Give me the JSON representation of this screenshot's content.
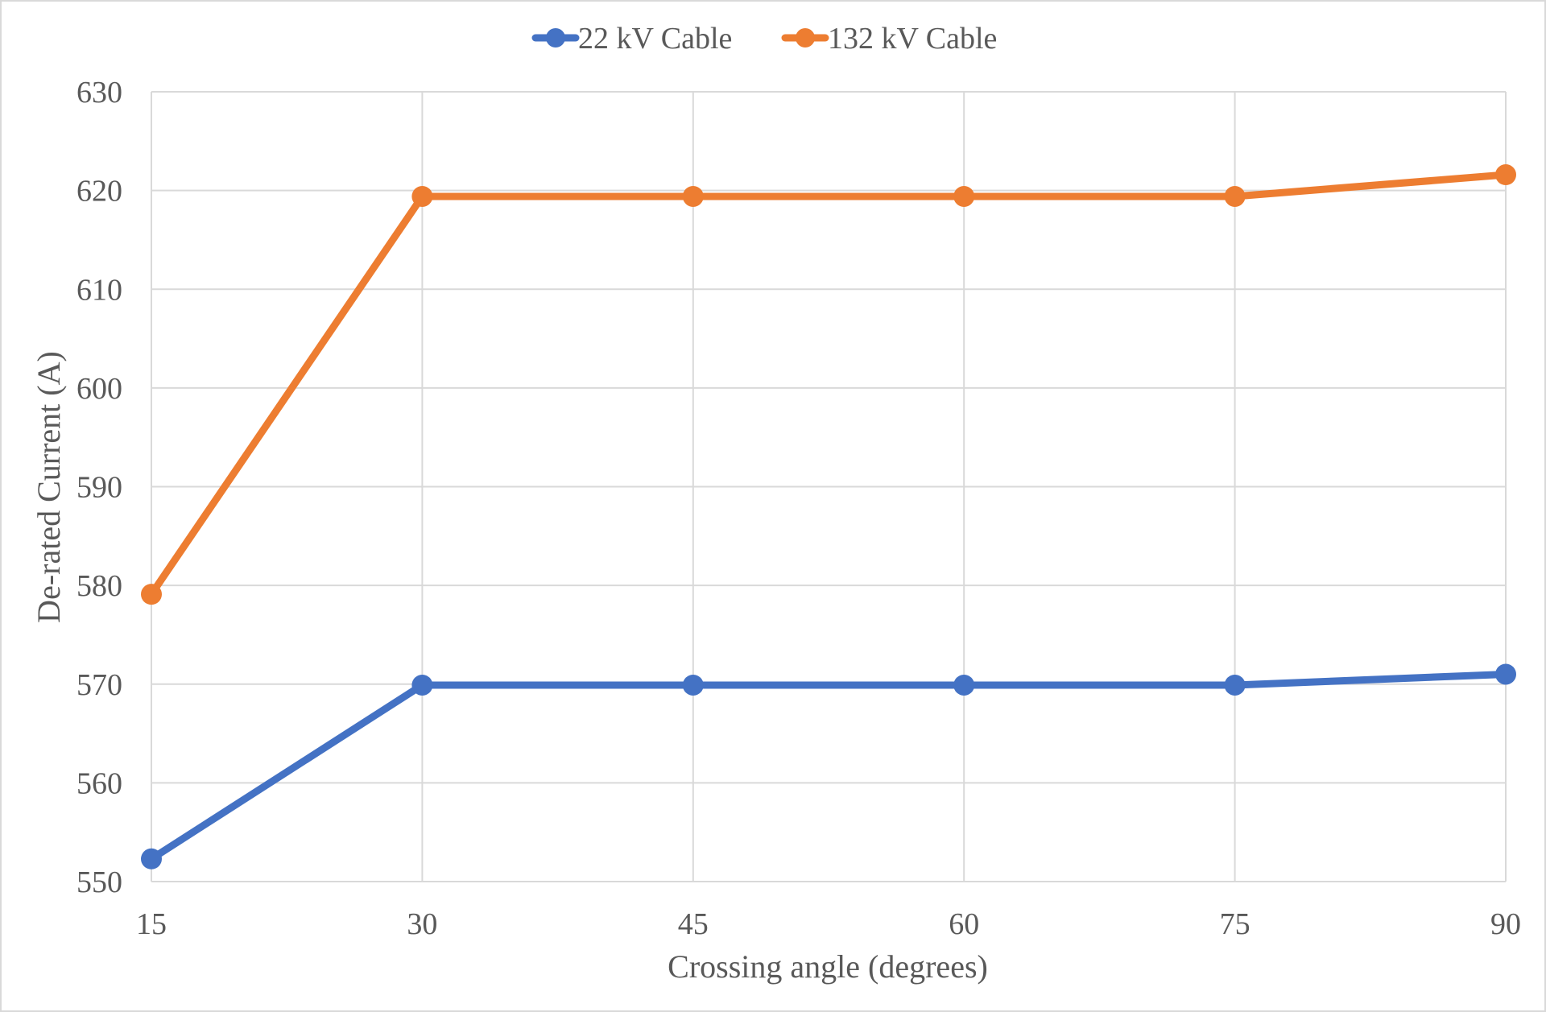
{
  "chart_data": {
    "type": "line",
    "title": "",
    "xlabel": "Crossing angle (degrees)",
    "ylabel": "De-rated Current (A)",
    "x": [
      15,
      30,
      45,
      60,
      75,
      90
    ],
    "categories": [
      "15",
      "30",
      "45",
      "60",
      "75",
      "90"
    ],
    "ylim": [
      550,
      630
    ],
    "yticks": [
      550,
      560,
      570,
      580,
      590,
      600,
      610,
      620,
      630
    ],
    "grid": true,
    "legend_position": "top",
    "series": [
      {
        "name": "22 kV Cable",
        "color": "#4472c4",
        "values": [
          552.3,
          569.9,
          569.9,
          569.9,
          569.9,
          571.0
        ]
      },
      {
        "name": "132 kV Cable",
        "color": "#ed7d31",
        "values": [
          579.1,
          619.4,
          619.4,
          619.4,
          619.4,
          621.6
        ]
      }
    ]
  },
  "legend": {
    "items": [
      {
        "label": "22 kV Cable",
        "color": "#4472c4"
      },
      {
        "label": "132 kV Cable",
        "color": "#ed7d31"
      }
    ]
  },
  "axes": {
    "x_title": "Crossing angle (degrees)",
    "y_title": "De-rated Current (A)"
  }
}
